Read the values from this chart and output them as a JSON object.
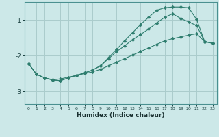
{
  "xlabel": "Humidex (Indice chaleur)",
  "bg_color": "#cce8e8",
  "grid_color": "#aacccc",
  "line_color": "#2e7d6e",
  "xlim_min": -0.5,
  "xlim_max": 23.5,
  "ylim_min": -3.35,
  "ylim_max": -0.5,
  "yticks": [
    -3,
    -2,
    -1
  ],
  "xticks": [
    0,
    1,
    2,
    3,
    4,
    5,
    6,
    7,
    8,
    9,
    10,
    11,
    12,
    13,
    14,
    15,
    16,
    17,
    18,
    19,
    20,
    21,
    22,
    23
  ],
  "line1_x": [
    0,
    1,
    2,
    3,
    4,
    5,
    6,
    7,
    8,
    9,
    10,
    11,
    12,
    13,
    14,
    15,
    16,
    17,
    18,
    19,
    20,
    21,
    22,
    23
  ],
  "line1_y": [
    -2.22,
    -2.52,
    -2.62,
    -2.67,
    -2.65,
    -2.6,
    -2.55,
    -2.5,
    -2.45,
    -2.38,
    -2.28,
    -2.18,
    -2.08,
    -1.98,
    -1.88,
    -1.78,
    -1.68,
    -1.58,
    -1.52,
    -1.47,
    -1.42,
    -1.38,
    -1.6,
    -1.65
  ],
  "line2_x": [
    0,
    1,
    2,
    3,
    4,
    5,
    6,
    7,
    8,
    9,
    10,
    11,
    12,
    13,
    14,
    15,
    16,
    17,
    18,
    19,
    20,
    21,
    22,
    23
  ],
  "line2_y": [
    -2.22,
    -2.52,
    -2.62,
    -2.68,
    -2.7,
    -2.62,
    -2.55,
    -2.48,
    -2.4,
    -2.28,
    -2.05,
    -1.82,
    -1.58,
    -1.35,
    -1.12,
    -0.92,
    -0.72,
    -0.65,
    -0.63,
    -0.63,
    -0.65,
    -0.98,
    -1.6,
    -1.65
  ],
  "line3_x": [
    0,
    1,
    2,
    3,
    4,
    5,
    6,
    7,
    8,
    9,
    10,
    11,
    12,
    13,
    14,
    15,
    16,
    17,
    18,
    19,
    20,
    21,
    22,
    23
  ],
  "line3_y": [
    -2.22,
    -2.52,
    -2.62,
    -2.68,
    -2.7,
    -2.62,
    -2.55,
    -2.48,
    -2.4,
    -2.28,
    -2.08,
    -1.88,
    -1.72,
    -1.55,
    -1.4,
    -1.25,
    -1.08,
    -0.92,
    -0.82,
    -0.95,
    -1.05,
    -1.15,
    -1.6,
    -1.65
  ]
}
